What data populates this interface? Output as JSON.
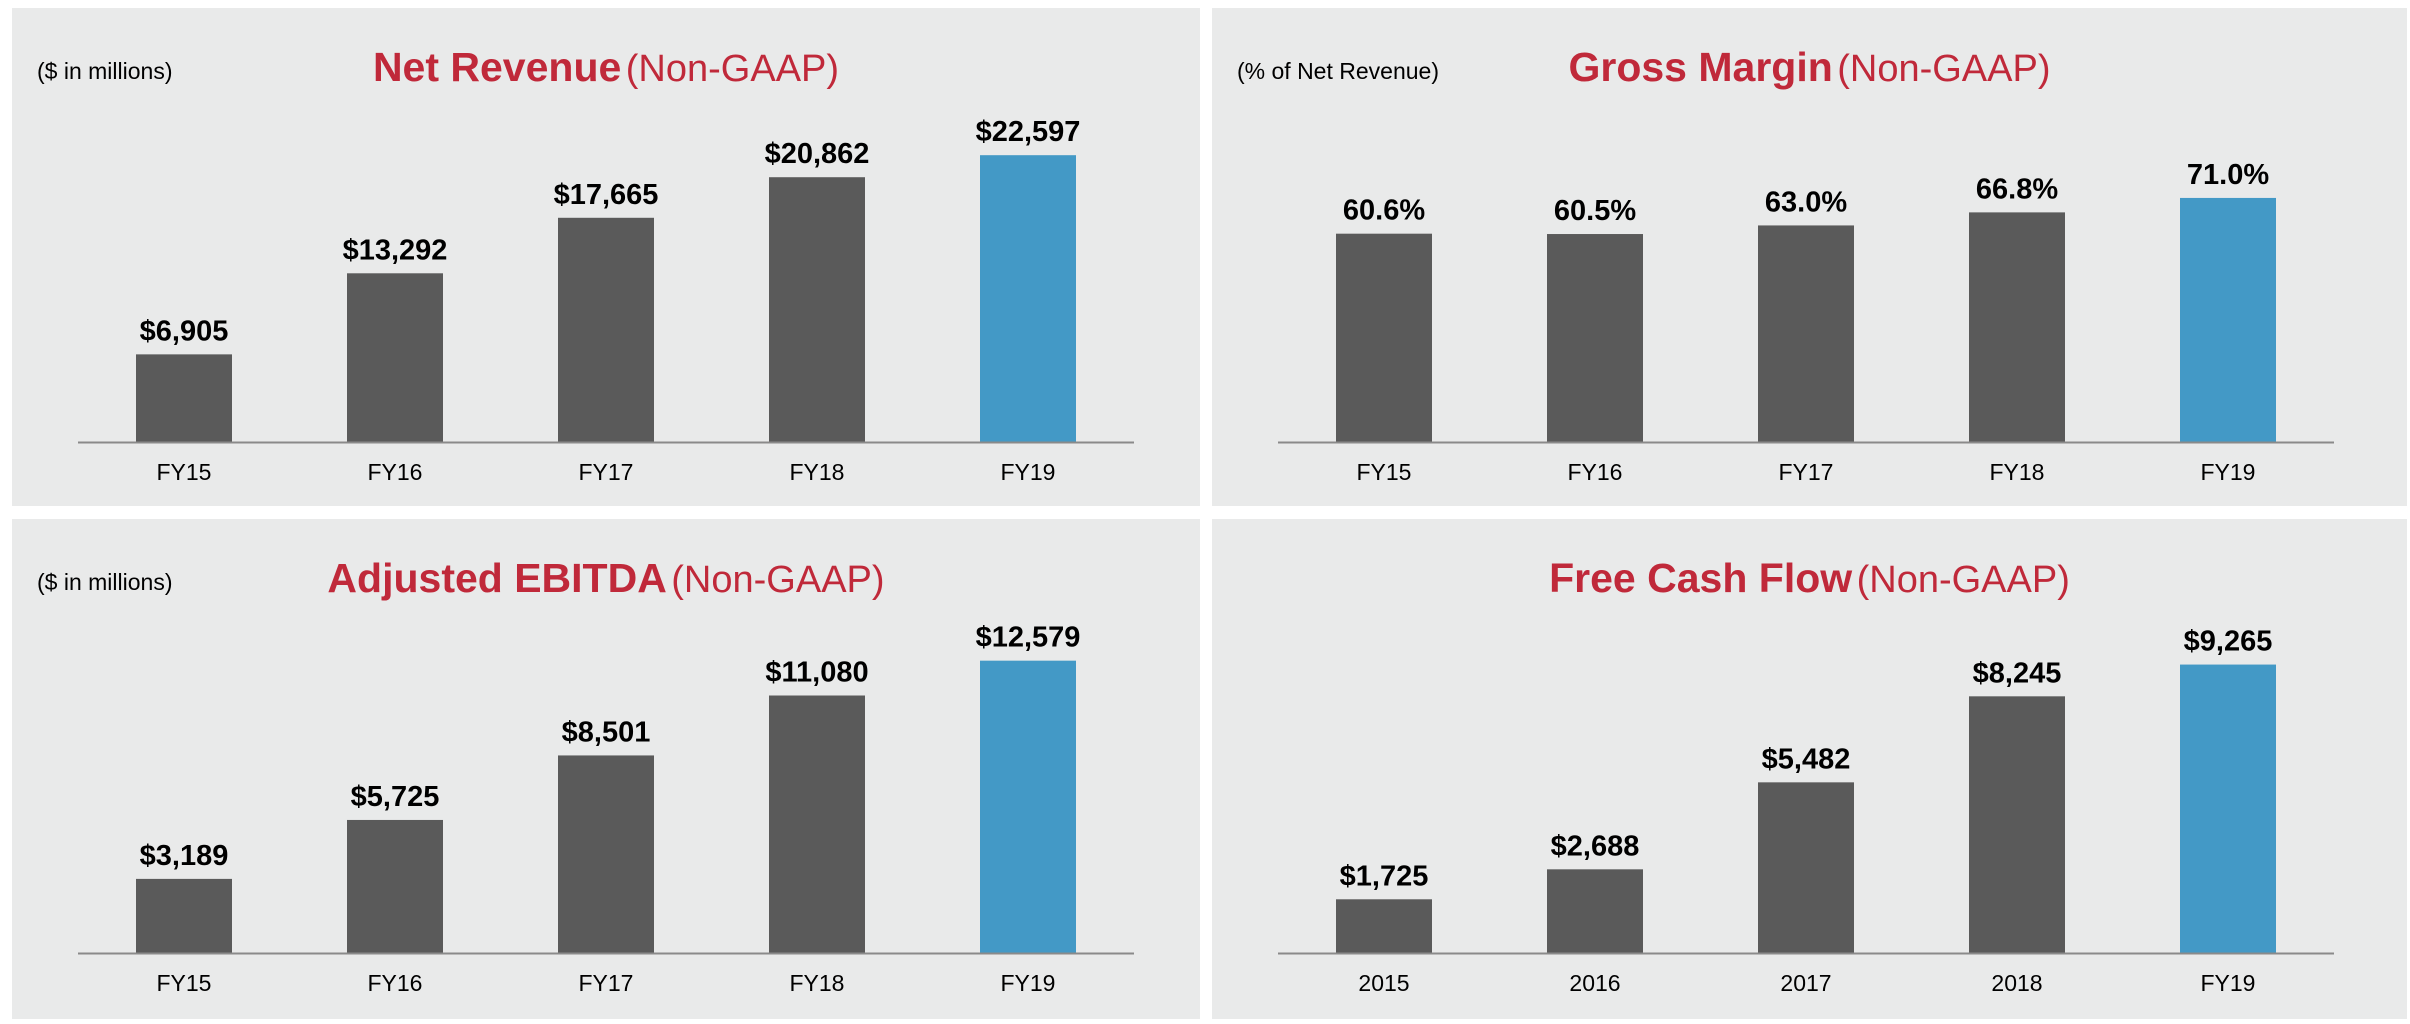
{
  "colors": {
    "bar": "#5a5a5a",
    "highlight": "#4399c6",
    "title": "#c0293a",
    "axis": "#8a8a8a",
    "panel_bg": "#e9eaea"
  },
  "panels": [
    {
      "unit": "($ in millions)",
      "title_main": "Net Revenue",
      "title_sub": "(Non-GAAP)"
    },
    {
      "unit": "(% of Net Revenue)",
      "title_main": "Gross Margin",
      "title_sub": "(Non-GAAP)"
    },
    {
      "unit": "($ in millions)",
      "title_main": "Adjusted EBITDA",
      "title_sub": "(Non-GAAP)"
    },
    {
      "unit": "",
      "title_main": "Free Cash Flow",
      "title_sub": "(Non-GAAP)"
    }
  ],
  "chart_data": [
    {
      "type": "bar",
      "title": "Net Revenue (Non-GAAP)",
      "ylabel": "($ in millions)",
      "categories": [
        "FY15",
        "FY16",
        "FY17",
        "FY18",
        "FY19"
      ],
      "values": [
        6905,
        13292,
        17665,
        20862,
        22597
      ],
      "labels": [
        "$6,905",
        "$13,292",
        "$17,665",
        "$20,862",
        "$22,597"
      ],
      "highlight_index": 4,
      "ylim": [
        0,
        26000
      ]
    },
    {
      "type": "bar",
      "title": "Gross Margin (Non-GAAP)",
      "ylabel": "(% of Net Revenue)",
      "categories": [
        "FY15",
        "FY16",
        "FY17",
        "FY18",
        "FY19"
      ],
      "values": [
        60.6,
        60.5,
        63.0,
        66.8,
        71.0
      ],
      "labels": [
        "60.6%",
        "60.5%",
        "63.0%",
        "66.8%",
        "71.0%"
      ],
      "highlight_index": 4,
      "ylim": [
        0,
        96
      ]
    },
    {
      "type": "bar",
      "title": "Adjusted EBITDA (Non-GAAP)",
      "ylabel": "($ in millions)",
      "categories": [
        "FY15",
        "FY16",
        "FY17",
        "FY18",
        "FY19"
      ],
      "values": [
        3189,
        5725,
        8501,
        11080,
        12579
      ],
      "labels": [
        "$3,189",
        "$5,725",
        "$8,501",
        "$11,080",
        "$12,579"
      ],
      "highlight_index": 4,
      "ylim": [
        0,
        14200
      ]
    },
    {
      "type": "bar",
      "title": "Free Cash Flow (Non-GAAP)",
      "ylabel": "",
      "categories": [
        "2015",
        "2016",
        "2017",
        "2018",
        "FY19"
      ],
      "values": [
        1725,
        2688,
        5482,
        8245,
        9265
      ],
      "labels": [
        "$1,725",
        "$2,688",
        "$5,482",
        "$8,245",
        "$9,265"
      ],
      "highlight_index": 4,
      "ylim": [
        0,
        10600
      ]
    }
  ]
}
